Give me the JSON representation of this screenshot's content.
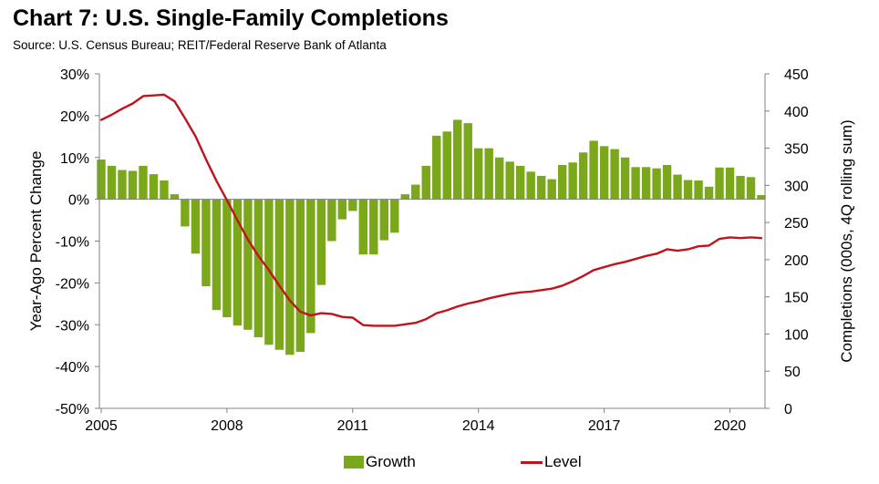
{
  "header": {
    "title": "Chart 7: U.S. Single-Family Completions",
    "source": "Source: U.S. Census Bureau; REIT/Federal Reserve Bank of Atlanta"
  },
  "colors": {
    "growth": "#7aa81a",
    "level": "#c0141c",
    "axis": "#808080"
  },
  "chart_data": {
    "type": "bar",
    "title": "Chart 7: U.S. Single-Family Completions",
    "ylabel": "Year-Ago Percent Change",
    "y2label": "Completions (000s, 4Q rolling sum)",
    "ylim": [
      -50,
      30
    ],
    "y2lim": [
      0,
      450
    ],
    "xlim": [
      2005,
      2020.75
    ],
    "x_ticks": [
      "2005",
      "2008",
      "2011",
      "2014",
      "2017",
      "2020"
    ],
    "y_ticks": [
      "30%",
      "20%",
      "10%",
      "0%",
      "-10%",
      "-20%",
      "-30%",
      "-40%",
      "-50%"
    ],
    "y2_ticks": [
      "450",
      "400",
      "350",
      "300",
      "250",
      "200",
      "150",
      "100",
      "50",
      "0"
    ],
    "legend": "bottom",
    "grid": false,
    "x": [
      2005.0,
      2005.25,
      2005.5,
      2005.75,
      2006.0,
      2006.25,
      2006.5,
      2006.75,
      2007.0,
      2007.25,
      2007.5,
      2007.75,
      2008.0,
      2008.25,
      2008.5,
      2008.75,
      2009.0,
      2009.25,
      2009.5,
      2009.75,
      2010.0,
      2010.25,
      2010.5,
      2010.75,
      2011.0,
      2011.25,
      2011.5,
      2011.75,
      2012.0,
      2012.25,
      2012.5,
      2012.75,
      2013.0,
      2013.25,
      2013.5,
      2013.75,
      2014.0,
      2014.25,
      2014.5,
      2014.75,
      2015.0,
      2015.25,
      2015.5,
      2015.75,
      2016.0,
      2016.25,
      2016.5,
      2016.75,
      2017.0,
      2017.25,
      2017.5,
      2017.75,
      2018.0,
      2018.25,
      2018.5,
      2018.75,
      2019.0,
      2019.25,
      2019.5,
      2019.75,
      2020.0,
      2020.25,
      2020.5,
      2020.75
    ],
    "series": [
      {
        "name": "Growth",
        "kind": "bar",
        "axis": "left",
        "values": [
          9.5,
          8,
          7,
          6.8,
          8,
          6,
          4.5,
          1.2,
          -6.5,
          -13,
          -20.8,
          -26.5,
          -28.2,
          -30.2,
          -31.2,
          -33,
          -34.8,
          -36,
          -37.2,
          -36.5,
          -32,
          -20.5,
          -10,
          -4.8,
          -2.8,
          -13.2,
          -13.2,
          -9.8,
          -8,
          1.2,
          3.5,
          8,
          15.2,
          16.2,
          19,
          18.2,
          12.2,
          12.2,
          10,
          9,
          8,
          6.6,
          5.6,
          4.8,
          8.2,
          8.8,
          11.2,
          14,
          12.7,
          12,
          10,
          7.7,
          7.7,
          7.4,
          8.2,
          5.9,
          4.6,
          4.5,
          3,
          7.6,
          7.6,
          5.6,
          5.3,
          1
        ]
      },
      {
        "name": "Level",
        "kind": "line",
        "axis": "right",
        "values": [
          388,
          395,
          403,
          410,
          420,
          421,
          422,
          413,
          390,
          366,
          335,
          306,
          280,
          253,
          227,
          205,
          186,
          165,
          145,
          130,
          125,
          128,
          127,
          123,
          122,
          112,
          111,
          111,
          111,
          113,
          115,
          120,
          128,
          132,
          137,
          141,
          144,
          148,
          151,
          154,
          156,
          157,
          159,
          161,
          165,
          171,
          178,
          186,
          190,
          194,
          197,
          201,
          205,
          208,
          214,
          212,
          214,
          218,
          219,
          228,
          230,
          229,
          230,
          229
        ]
      }
    ]
  },
  "legend_items": {
    "growth": "Growth",
    "level": "Level"
  }
}
